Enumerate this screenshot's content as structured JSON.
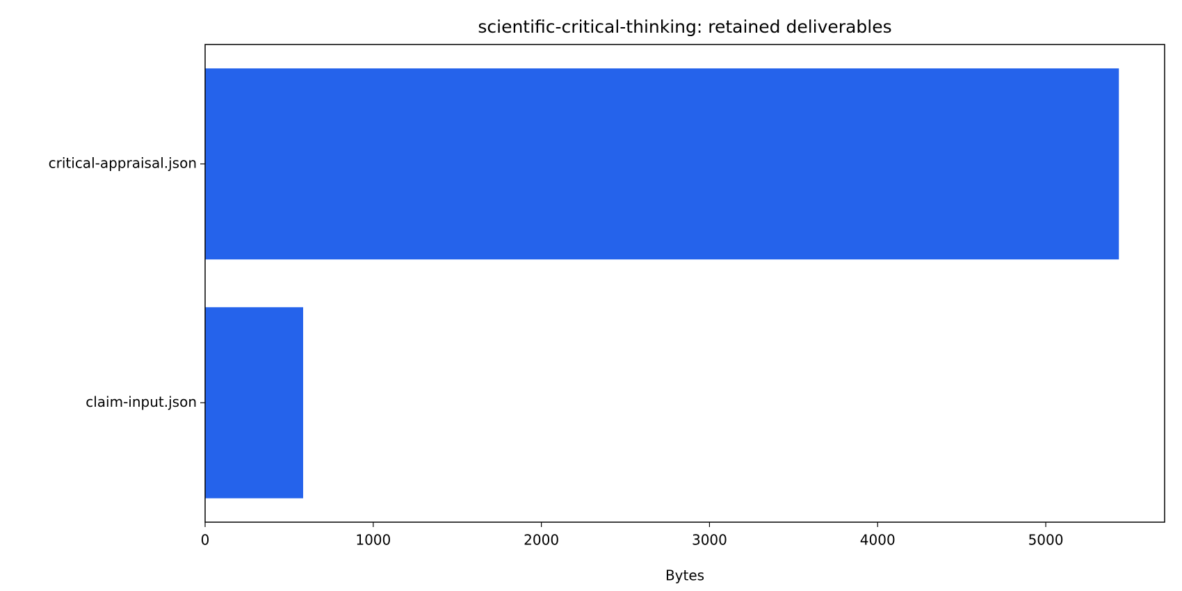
{
  "chart_data": {
    "type": "barh",
    "title": "scientific-critical-thinking: retained deliverables",
    "xlabel": "Bytes",
    "categories": [
      "critical-appraisal.json",
      "claim-input.json"
    ],
    "values": [
      5435,
      583
    ],
    "color": "#2563eb",
    "xlim": [
      0,
      5707
    ],
    "xticks": [
      0,
      1000,
      2000,
      3000,
      4000,
      5000
    ],
    "grid": false
  }
}
